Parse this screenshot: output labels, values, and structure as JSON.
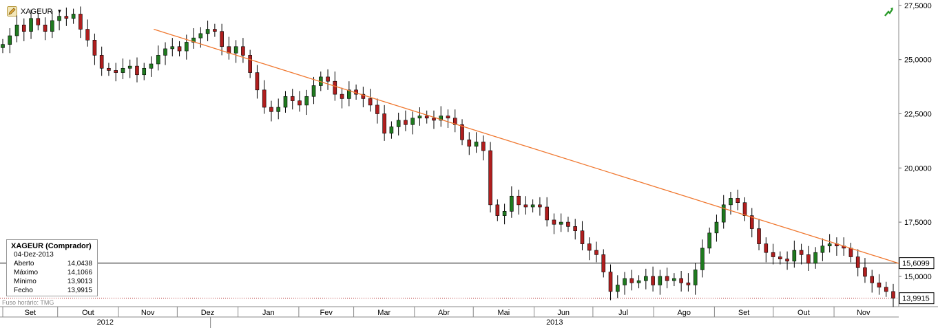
{
  "header": {
    "symbol": "XAGEUR"
  },
  "info_box": {
    "title": "XAGEUR (Comprador)",
    "date": "04-Dez-2013",
    "rows": [
      {
        "label": "Aberto",
        "value": "14,0438"
      },
      {
        "label": "Máximo",
        "value": "14,1066"
      },
      {
        "label": "Mínimo",
        "value": "13,9013"
      },
      {
        "label": "Fecho",
        "value": "13,9915"
      }
    ]
  },
  "timezone_label": "Fuso horário: TMG",
  "icons": {
    "symbol_icon": "pencil-icon",
    "dropdown_icon": "caret-down-icon",
    "trend_icon": "uptrend-arrow-icon"
  },
  "colors": {
    "up": "#1f7a1f",
    "down": "#b01e1e",
    "trendline": "#f07830",
    "wick": "#000000"
  },
  "chart_data": {
    "type": "candlestick",
    "y_axis": {
      "min": 13.6,
      "max": 27.75,
      "ticks": [
        "27,5000",
        "25,0000",
        "22,5000",
        "20,0000",
        "17,5000",
        "15,0000"
      ],
      "tick_values": [
        27.5,
        25,
        22.5,
        20,
        17.5,
        15
      ]
    },
    "price_labels": [
      {
        "value": 15.6099,
        "text": "15,6099",
        "style": "solid"
      },
      {
        "value": 13.9915,
        "text": "13,9915",
        "style": "dotted"
      }
    ],
    "trendline": {
      "from": {
        "date": "2012-11-19",
        "value": 26.4
      },
      "to": {
        "date": "2013-12-04",
        "value": 15.6
      }
    },
    "months": [
      "Set",
      "Out",
      "Nov",
      "Dez",
      "Jan",
      "Fev",
      "Mar",
      "Abr",
      "Mai",
      "Jun",
      "Jul",
      "Ago",
      "Set",
      "Out",
      "Nov"
    ],
    "years": [
      "2012",
      "2013"
    ],
    "series": [
      25.7,
      26.1,
      26.6,
      26.3,
      26.9,
      26.6,
      26.3,
      26.8,
      27.0,
      26.9,
      27.1,
      26.4,
      25.9,
      25.2,
      24.6,
      24.5,
      24.4,
      24.6,
      24.7,
      24.3,
      24.6,
      24.8,
      25.2,
      25.5,
      25.6,
      25.4,
      25.8,
      26.0,
      26.2,
      26.4,
      26.3,
      25.6,
      25.3,
      25.6,
      25.2,
      24.4,
      23.6,
      22.8,
      22.6,
      22.8,
      23.3,
      23.1,
      22.9,
      23.3,
      23.8,
      24.2,
      24.0,
      23.4,
      23.2,
      23.6,
      23.4,
      23.2,
      22.9,
      22.5,
      21.6,
      21.9,
      22.2,
      22.0,
      22.3,
      22.4,
      22.3,
      22.2,
      22.4,
      22.3,
      22.0,
      21.3,
      21.0,
      21.2,
      20.8,
      18.3,
      17.8,
      18.0,
      18.7,
      18.3,
      18.2,
      18.3,
      18.2,
      17.6,
      17.4,
      17.5,
      17.3,
      17.1,
      16.5,
      16.2,
      16.0,
      15.2,
      14.3,
      14.6,
      14.9,
      14.7,
      14.8,
      15.0,
      14.6,
      15.0,
      14.8,
      14.9,
      14.7,
      14.6,
      15.3,
      16.3,
      17.0,
      17.5,
      18.3,
      18.6,
      18.4,
      17.8,
      17.2,
      16.5,
      16.1,
      15.9,
      15.8,
      15.7,
      16.2,
      16.0,
      15.6,
      16.1,
      16.4,
      16.5,
      16.4,
      16.3,
      15.9,
      15.4,
      15.0,
      14.7,
      14.5,
      14.3,
      13.99
    ]
  }
}
